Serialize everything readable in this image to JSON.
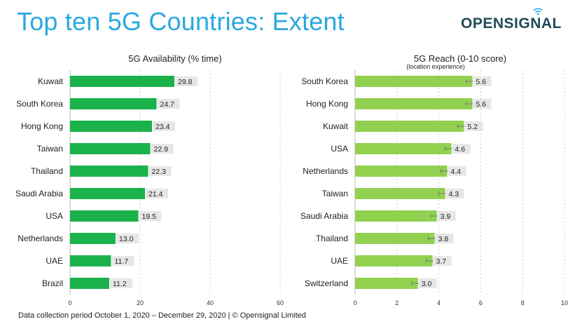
{
  "header": {
    "title": "Top ten 5G Countries: Extent",
    "logo_text": "OPENSIGNAL"
  },
  "footer": {
    "text": "Data collection period October 1, 2020 – December 29, 2020  |  © Opensignal Limited"
  },
  "colors": {
    "title": "#2aa8e0",
    "left_bar": "#1bb24b",
    "right_bar": "#92d050",
    "label_bg": "#e6e6e6",
    "logo": "#1f4a5a"
  },
  "chart_data": [
    {
      "type": "bar",
      "orientation": "horizontal",
      "title": "5G Availability (% time)",
      "subtitle": "",
      "categories": [
        "Kuwait",
        "South Korea",
        "Hong Kong",
        "Taiwan",
        "Thailand",
        "Saudi Arabia",
        "USA",
        "Netherlands",
        "UAE",
        "Brazil"
      ],
      "values": [
        29.8,
        24.7,
        23.4,
        22.9,
        22.3,
        21.4,
        19.5,
        13.0,
        11.7,
        11.2
      ],
      "value_labels": [
        "29.8",
        "24.7",
        "23.4",
        "22.9",
        "22.3",
        "21.4",
        "19.5",
        "13.0",
        "11.7",
        "11.2"
      ],
      "xlim": [
        0,
        60
      ],
      "xticks": [
        0,
        20,
        40,
        60
      ],
      "grid": true,
      "error_bars": false
    },
    {
      "type": "bar",
      "orientation": "horizontal",
      "title": "5G Reach (0-10 score)",
      "subtitle": "(location experience)",
      "categories": [
        "South Korea",
        "Hong Kong",
        "Kuwait",
        "USA",
        "Netherlands",
        "Taiwan",
        "Saudi Arabia",
        "Thailand",
        "UAE",
        "Switzerland"
      ],
      "values": [
        5.6,
        5.6,
        5.2,
        4.6,
        4.4,
        4.3,
        3.9,
        3.8,
        3.7,
        3.0
      ],
      "value_labels": [
        "5.6",
        "5.6",
        "5.2",
        "4.6",
        "4.4",
        "4.3",
        "3.9",
        "3.8",
        "3.7",
        "3.0"
      ],
      "xlim": [
        0,
        10
      ],
      "xticks": [
        0,
        2,
        4,
        6,
        8,
        10
      ],
      "grid": true,
      "error_bars": true
    }
  ]
}
